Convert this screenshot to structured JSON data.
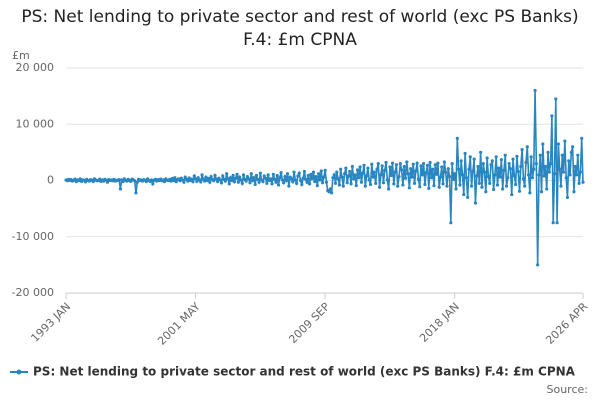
{
  "chart_data": {
    "type": "line",
    "title": "PS: Net lending to private sector and rest of world (exc PS Banks) F.4: £m CPNA",
    "y_axis_label": "£m",
    "source": "Source:",
    "ylim": [
      -20000,
      20000
    ],
    "yticks": [
      {
        "value": -20000,
        "label": "-20 000"
      },
      {
        "value": -10000,
        "label": "-10 000"
      },
      0,
      {
        "value": 10000,
        "label": "10 000"
      },
      {
        "value": 20000,
        "label": "20 000"
      }
    ],
    "grid": true,
    "markers": true,
    "categories": [
      "1993 JAN",
      null,
      null,
      null,
      null,
      null,
      null,
      null,
      null,
      null,
      null,
      null,
      null,
      null,
      null,
      null,
      null,
      null,
      null,
      null,
      null,
      null,
      null,
      null,
      null,
      null,
      null,
      null,
      null,
      null,
      null,
      null,
      null,
      null,
      null,
      null,
      null,
      null,
      null,
      null,
      null,
      null,
      null,
      null,
      null,
      null,
      null,
      null,
      null,
      null,
      null,
      null,
      null,
      null,
      null,
      null,
      null,
      null,
      null,
      null,
      null,
      null,
      null,
      null,
      null,
      null,
      null,
      null,
      null,
      null,
      null,
      null,
      null,
      null,
      null,
      null,
      null,
      null,
      null,
      null,
      null,
      null,
      null,
      null,
      null,
      null,
      null,
      null,
      null,
      null,
      null,
      null,
      null,
      null,
      null,
      null,
      null,
      null,
      null,
      null,
      "2001 MAY",
      null,
      null,
      null,
      null,
      null,
      null,
      null,
      null,
      null,
      null,
      null,
      null,
      null,
      null,
      null,
      null,
      null,
      null,
      null,
      null,
      null,
      null,
      null,
      null,
      null,
      null,
      null,
      null,
      null,
      null,
      null,
      null,
      null,
      null,
      null,
      null,
      null,
      null,
      null,
      null,
      null,
      null,
      null,
      null,
      null,
      null,
      null,
      null,
      null,
      null,
      null,
      null,
      null,
      null,
      null,
      null,
      null,
      null,
      null,
      null,
      null,
      null,
      null,
      null,
      null,
      null,
      null,
      null,
      null,
      null,
      null,
      null,
      null,
      null,
      null,
      null,
      null,
      null,
      null,
      null,
      null,
      null,
      null,
      null,
      null,
      null,
      null,
      null,
      null,
      null,
      null,
      null,
      null,
      null,
      null,
      null,
      null,
      null,
      null,
      "2009 SEP",
      null,
      null,
      null,
      null,
      null,
      null,
      null,
      null,
      null,
      null,
      null,
      null,
      null,
      null,
      null,
      null,
      null,
      null,
      null,
      null,
      null,
      null,
      null,
      null,
      null,
      null,
      null,
      null,
      null,
      null,
      null,
      null,
      null,
      null,
      null,
      null,
      null,
      null,
      null,
      null,
      null,
      null,
      null,
      null,
      null,
      null,
      null,
      null,
      null,
      null,
      null,
      null,
      null,
      null,
      null,
      null,
      null,
      null,
      null,
      null,
      null,
      null,
      null,
      null,
      null,
      null,
      null,
      null,
      null,
      null,
      null,
      null,
      null,
      null,
      null,
      null,
      null,
      null,
      null,
      null,
      null,
      null,
      null,
      null,
      null,
      null,
      null,
      null,
      null,
      null,
      null,
      null,
      null,
      null,
      null,
      null,
      null,
      null,
      null,
      "2018 JAN",
      null,
      null,
      null,
      null,
      null,
      null,
      null,
      null,
      null,
      null,
      null,
      null,
      null,
      null,
      null,
      null,
      null,
      null,
      null,
      null,
      null,
      null,
      null,
      null,
      null,
      null,
      null,
      null,
      null,
      null,
      null,
      null,
      null,
      null,
      null,
      null,
      null,
      null,
      null,
      null,
      null,
      null,
      null,
      null,
      null,
      null,
      null,
      null,
      null,
      null,
      null,
      null,
      null,
      null,
      null,
      null,
      null,
      null,
      null,
      null,
      null,
      null,
      null,
      null,
      null,
      null,
      null,
      null,
      null,
      null,
      null,
      null,
      null,
      null,
      null,
      null,
      null,
      null,
      null,
      null,
      null,
      null,
      null,
      null,
      null,
      null,
      null,
      null,
      null,
      null,
      null,
      null,
      null,
      null,
      null,
      null,
      null,
      null,
      "2026 APR"
    ],
    "series": [
      {
        "name": "PS: Net lending to private sector and rest of world (exc PS Banks) F.4: £m CPNA",
        "color": "#2a86c0",
        "values": [
          100,
          -50,
          200,
          0,
          150,
          -100,
          50,
          250,
          -200,
          100,
          0,
          300,
          -150,
          100,
          50,
          -250,
          200,
          0,
          -100,
          150,
          50,
          -200,
          300,
          100,
          -50,
          0,
          250,
          -150,
          100,
          -100,
          200,
          50,
          -300,
          150,
          0,
          100,
          -50,
          200,
          -100,
          50,
          0,
          150,
          -1500,
          100,
          -200,
          300,
          50,
          -100,
          200,
          0,
          -150,
          250,
          100,
          -50,
          -2200,
          -300,
          200,
          0,
          100,
          -100,
          150,
          50,
          -200,
          300,
          0,
          -150,
          100,
          -600,
          50,
          200,
          -100,
          150,
          0,
          250,
          -50,
          100,
          -200,
          300,
          50,
          0,
          200,
          -100,
          350,
          0,
          500,
          -200,
          150,
          300,
          -50,
          400,
          100,
          -300,
          600,
          200,
          -100,
          450,
          0,
          250,
          -200,
          800,
          300,
          -150,
          500,
          100,
          -250,
          1000,
          200,
          -100,
          600,
          0,
          350,
          -300,
          700,
          150,
          -50,
          900,
          250,
          -200,
          400,
          100,
          -400,
          800,
          200,
          -100,
          1200,
          300,
          -600,
          500,
          0,
          900,
          -200,
          400,
          1100,
          -300,
          600,
          100,
          -500,
          1000,
          200,
          -100,
          700,
          300,
          -400,
          1200,
          0,
          500,
          -700,
          900,
          200,
          -300,
          1300,
          100,
          -200,
          800,
          400,
          -500,
          1000,
          0,
          300,
          -600,
          1100,
          200,
          -300,
          900,
          -800,
          500,
          1400,
          100,
          -400,
          700,
          0,
          1200,
          -1000,
          600,
          300,
          -200,
          1500,
          100,
          -500,
          800,
          1300,
          0,
          -700,
          400,
          1600,
          200,
          -300,
          900,
          -600,
          1100,
          300,
          1500,
          -200,
          700,
          -900,
          1200,
          100,
          1700,
          -400,
          600,
          1800,
          -300,
          -1800,
          -2000,
          -1500,
          -2200,
          500,
          1000,
          -500,
          1500,
          300,
          -800,
          2000,
          600,
          -1000,
          1200,
          2200,
          -400,
          800,
          1600,
          -600,
          2500,
          300,
          1000,
          -900,
          1900,
          500,
          2400,
          -300,
          1300,
          2700,
          -1000,
          800,
          2200,
          100,
          -700,
          2900,
          600,
          1500,
          -500,
          2000,
          3000,
          -1200,
          1000,
          2600,
          -400,
          1800,
          3200,
          100,
          -1500,
          2400,
          900,
          3100,
          -600,
          1500,
          2800,
          -1000,
          700,
          3000,
          1900,
          -800,
          2500,
          400,
          3300,
          1200,
          -1300,
          2100,
          600,
          2900,
          -500,
          1700,
          3100,
          200,
          -1100,
          2600,
          1000,
          3000,
          -700,
          1400,
          2700,
          -1400,
          3200,
          500,
          2000,
          -900,
          2800,
          1100,
          3100,
          -1200,
          600,
          2400,
          -600,
          3300,
          1500,
          -1000,
          2100,
          700,
          -7500,
          3000,
          200,
          1200,
          -1500,
          7500,
          2000,
          -800,
          3500,
          1000,
          -2500,
          4800,
          500,
          -3000,
          2000,
          4200,
          -1000,
          1600,
          3800,
          -4000,
          800,
          2500,
          -500,
          5000,
          -1200,
          3000,
          1500,
          -2000,
          4000,
          700,
          -500,
          2800,
          3500,
          -1600,
          1000,
          4200,
          -800,
          2200,
          600,
          3700,
          -1500,
          1800,
          4500,
          -1000,
          500,
          3000,
          2100,
          -2500,
          3800,
          900,
          -700,
          4300,
          1600,
          -1900,
          2500,
          5500,
          300,
          -1000,
          3200,
          6000,
          1000,
          -2200,
          4200,
          500,
          2000,
          16000,
          3000,
          -15000,
          1000,
          4500,
          -2000,
          6500,
          800,
          2500,
          -1500,
          5000,
          1500,
          3000,
          11500,
          -7500,
          1200,
          14500,
          -7500,
          6500,
          2000,
          -1000,
          4500,
          1500,
          7000,
          500,
          -3000,
          3500,
          1000,
          5000,
          6000,
          -2000,
          2500,
          1000,
          4500,
          -500,
          1500,
          7500,
          -300
        ]
      }
    ]
  }
}
